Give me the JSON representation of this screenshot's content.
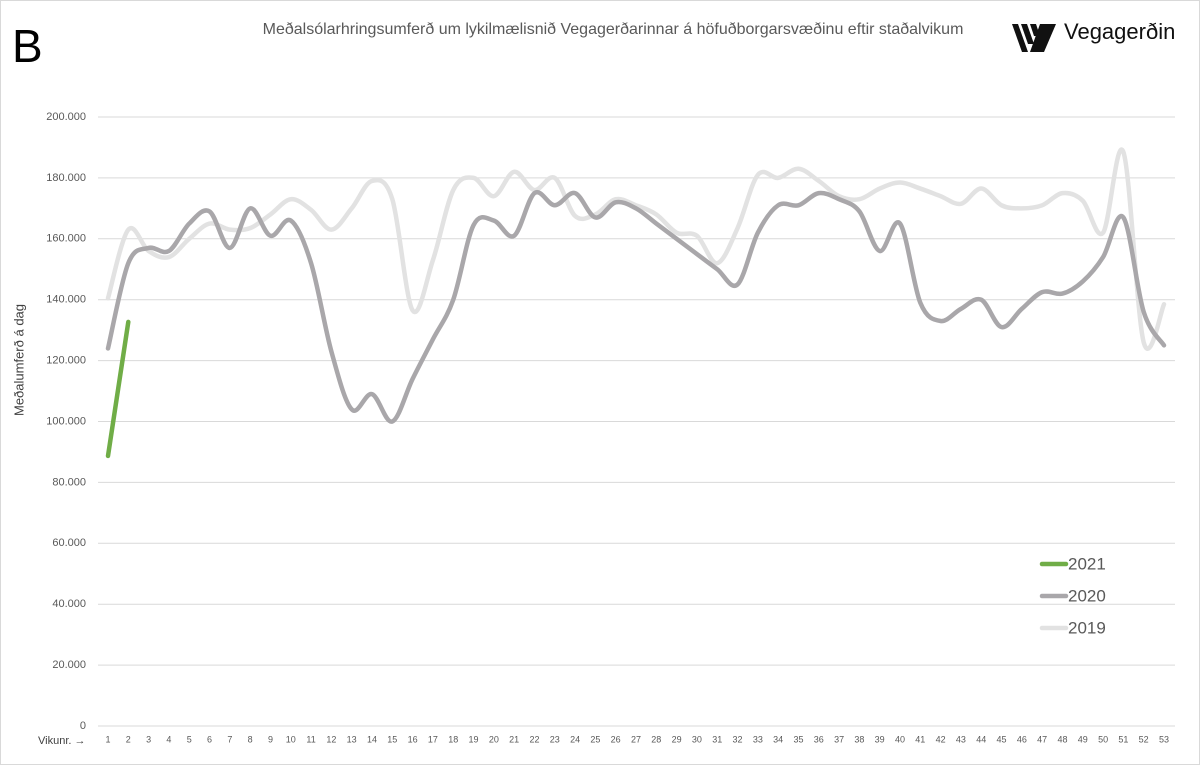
{
  "chart_data": {
    "type": "line",
    "panel_label": "B",
    "title": "Meðalsólarhringsumferð  um lykilmælisnið Vegagerðarinnar  á höfuðborgarsvæðinu  eftir staðalvikum",
    "brand": "Vegagerðin",
    "y_label": "Meðalumferð á dag",
    "x_label": "Vikunr. →",
    "categories": [
      "1",
      "2",
      "3",
      "4",
      "5",
      "6",
      "7",
      "8",
      "9",
      "10",
      "11",
      "12",
      "13",
      "14",
      "15",
      "16",
      "17",
      "18",
      "19",
      "20",
      "21",
      "22",
      "23",
      "24",
      "25",
      "26",
      "27",
      "28",
      "29",
      "30",
      "31",
      "32",
      "33",
      "34",
      "35",
      "36",
      "37",
      "38",
      "39",
      "40",
      "41",
      "42",
      "43",
      "44",
      "45",
      "46",
      "47",
      "48",
      "49",
      "50",
      "51",
      "52",
      "53"
    ],
    "series": [
      {
        "name": "2021",
        "color": "#70ad47",
        "values": [
          88700,
          132700,
          null,
          null,
          null,
          null,
          null,
          null,
          null,
          null,
          null,
          null,
          null,
          null,
          null,
          null,
          null,
          null,
          null,
          null,
          null,
          null,
          null,
          null,
          null,
          null,
          null,
          null,
          null,
          null,
          null,
          null,
          null,
          null,
          null,
          null,
          null,
          null,
          null,
          null,
          null,
          null,
          null,
          null,
          null,
          null,
          null,
          null,
          null,
          null,
          null,
          null,
          null
        ]
      },
      {
        "name": "2020",
        "color": "#a9a7aa",
        "values": [
          124000,
          152000,
          157000,
          156000,
          165000,
          169000,
          157000,
          170000,
          161000,
          166000,
          152000,
          123000,
          104000,
          109000,
          100000,
          114000,
          127000,
          140000,
          164500,
          166000,
          161000,
          175000,
          171000,
          175000,
          167000,
          172000,
          170000,
          165000,
          160000,
          155000,
          150000,
          145000,
          162000,
          171000,
          171000,
          175000,
          173000,
          169000,
          156000,
          165000,
          139000,
          133000,
          137000,
          140000,
          131000,
          137000,
          142500,
          142000,
          146000,
          154000,
          167000,
          136000,
          125000
        ]
      },
      {
        "name": "2019",
        "color": "#e2e2e2",
        "values": [
          140500,
          163000,
          156000,
          154000,
          160000,
          165000,
          163000,
          163500,
          168000,
          173000,
          169500,
          163000,
          170000,
          179000,
          173000,
          136500,
          153000,
          176000,
          180000,
          174000,
          182000,
          176000,
          180000,
          167500,
          168000,
          173000,
          171000,
          168000,
          162000,
          161000,
          152000,
          163500,
          181000,
          180000,
          183000,
          179000,
          174000,
          173000,
          176500,
          178500,
          176500,
          174000,
          171500,
          176500,
          171000,
          170000,
          171000,
          175000,
          172500,
          162000,
          188500,
          126000,
          138500
        ]
      }
    ],
    "ylim": [
      0,
      200000
    ],
    "yticks": [
      0,
      {
        "value": 20000,
        "label": "20.000"
      },
      {
        "value": 40000,
        "label": "40.000"
      },
      {
        "value": 60000,
        "label": "60.000"
      },
      {
        "value": 80000,
        "label": "80.000"
      },
      {
        "value": 100000,
        "label": "100.000"
      },
      {
        "value": 120000,
        "label": "120.000"
      },
      {
        "value": 140000,
        "label": "140.000"
      },
      {
        "value": 160000,
        "label": "160.000"
      },
      {
        "value": 180000,
        "label": "180.000"
      },
      {
        "value": 200000,
        "label": "200.000"
      }
    ],
    "grid": true,
    "legend": "lower right"
  }
}
